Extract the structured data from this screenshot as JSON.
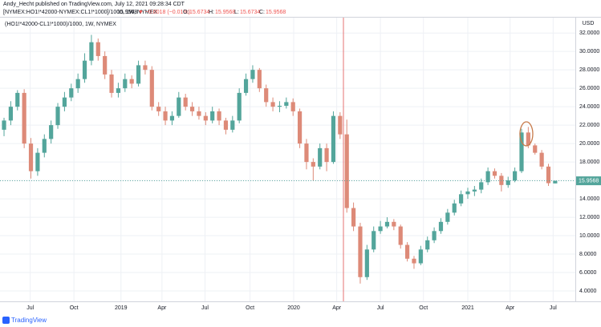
{
  "header": {
    "publisher": "Andy_Hecht published on TradingView.com, July 12, 2021 09:28:34 CDT",
    "symbol": "[NYMEX:HO1!*42000-NYMEX:CL1!*1000]/1000, 1W, NYMEX",
    "change": "▼ −0.0018 (−0.01%)",
    "ohlc_labels": [
      "O:",
      "H:",
      "L:",
      "C:"
    ]
  },
  "footer": "TradingView",
  "chart_data": {
    "type": "candlestick",
    "title": "(HO1!*42000-CL1!*1000)/1000, 1W, NYMEX",
    "currency": "USD",
    "up_color": "#53a59b",
    "down_color": "#dd8a78",
    "grid": true,
    "xlim": [
      -0.6,
      85
    ],
    "xticks": [
      {
        "value": 3.9,
        "label": "Jul"
      },
      {
        "value": 10.4,
        "label": "Oct"
      },
      {
        "value": 17.4,
        "label": "2019"
      },
      {
        "value": 23.5,
        "label": "Apr"
      },
      {
        "value": 29.9,
        "label": "Jul"
      },
      {
        "value": 36.6,
        "label": "Oct"
      },
      {
        "value": 43.1,
        "label": "2020"
      },
      {
        "value": 49.5,
        "label": "Apr"
      },
      {
        "value": 56,
        "label": "Jul"
      },
      {
        "value": 62.4,
        "label": "Oct"
      },
      {
        "value": 69,
        "label": "2021"
      },
      {
        "value": 75.3,
        "label": "Apr"
      },
      {
        "value": 81.7,
        "label": "Jul"
      }
    ],
    "ylim": [
      2.87,
      33.67
    ],
    "yticks": [
      {
        "value": 4,
        "label": "4.0000"
      },
      {
        "value": 6,
        "label": "6.0000"
      },
      {
        "value": 8,
        "label": "8.0000"
      },
      {
        "value": 10,
        "label": "10.0000"
      },
      {
        "value": 12,
        "label": "12.0000"
      },
      {
        "value": 14,
        "label": "14.0000"
      },
      {
        "value": 16,
        "label": "16.0000"
      },
      {
        "value": 18,
        "label": "18.0000"
      },
      {
        "value": 20,
        "label": "20.0000"
      },
      {
        "value": 22,
        "label": "22.0000"
      },
      {
        "value": 24,
        "label": "24.0000"
      },
      {
        "value": 26,
        "label": "26.0000"
      },
      {
        "value": 28,
        "label": "28.0000"
      },
      {
        "value": 30,
        "label": "30.0000"
      },
      {
        "value": 32,
        "label": "32.0000"
      }
    ],
    "candles": [
      [
        21.5,
        22.8,
        20.8,
        22.5
      ],
      [
        22.5,
        24.6,
        22,
        24
      ],
      [
        24,
        25.8,
        23.6,
        25.5
      ],
      [
        25.5,
        25.9,
        19.5,
        20
      ],
      [
        20,
        20.6,
        16.2,
        17
      ],
      [
        17,
        19.5,
        16.5,
        19
      ],
      [
        19,
        21,
        18.5,
        20.5
      ],
      [
        20.5,
        22.5,
        20,
        22
      ],
      [
        22,
        24.4,
        21.6,
        24
      ],
      [
        24,
        25.6,
        23.5,
        25
      ],
      [
        25,
        26.5,
        24.6,
        26
      ],
      [
        26,
        27.6,
        25.5,
        27
      ],
      [
        27,
        29.8,
        26.6,
        29
      ],
      [
        29,
        31.8,
        28.5,
        31
      ],
      [
        31,
        31.4,
        29,
        29.5
      ],
      [
        29.5,
        30,
        27,
        27.5
      ],
      [
        27.5,
        28,
        25,
        25.5
      ],
      [
        25.5,
        26.6,
        25,
        26
      ],
      [
        26,
        27.6,
        25.6,
        27
      ],
      [
        27,
        27.4,
        26,
        26.5
      ],
      [
        26.5,
        29,
        26.2,
        28.5
      ],
      [
        28.5,
        29,
        27.5,
        28
      ],
      [
        28,
        28.4,
        23.6,
        24
      ],
      [
        24,
        24.5,
        23,
        23.5
      ],
      [
        23.5,
        24,
        22,
        22.5
      ],
      [
        22.5,
        23.5,
        22,
        23
      ],
      [
        23,
        25.6,
        22.8,
        25
      ],
      [
        25,
        25.4,
        23.6,
        24
      ],
      [
        24,
        24.5,
        23,
        23.5
      ],
      [
        23.5,
        24,
        22.6,
        23
      ],
      [
        23,
        23.4,
        22,
        22.5
      ],
      [
        22.5,
        24,
        22.2,
        23.5
      ],
      [
        23.5,
        23.8,
        22,
        22.5
      ],
      [
        22.5,
        22.8,
        21,
        21.5
      ],
      [
        21.5,
        23,
        21.2,
        22.5
      ],
      [
        22.5,
        26,
        22.2,
        25.5
      ],
      [
        25.5,
        27.6,
        25.2,
        27
      ],
      [
        27,
        28.5,
        26.6,
        28
      ],
      [
        28,
        28.2,
        25.6,
        26
      ],
      [
        26,
        26.4,
        24,
        24.5
      ],
      [
        24.5,
        25,
        23.5,
        24
      ],
      [
        24,
        24.6,
        23.4,
        24.1
      ],
      [
        24.1,
        25,
        23.8,
        24.5
      ],
      [
        24.5,
        24.9,
        23,
        23.5
      ],
      [
        23.5,
        23.8,
        19.5,
        20
      ],
      [
        20,
        20.5,
        17.2,
        18
      ],
      [
        18,
        18.4,
        16,
        17.5
      ],
      [
        17.5,
        20,
        17.2,
        19.5
      ],
      [
        19.5,
        20,
        17,
        18
      ],
      [
        18,
        23.5,
        17.8,
        23
      ],
      [
        23,
        23.4,
        20.5,
        21
      ],
      [
        21,
        22.6,
        12.5,
        13
      ],
      [
        13,
        13.6,
        10.5,
        11
      ],
      [
        11,
        11.4,
        4.8,
        5.5
      ],
      [
        5.5,
        9,
        5.2,
        8.5
      ],
      [
        8.5,
        11,
        8.2,
        10.5
      ],
      [
        10.5,
        11.6,
        10.2,
        11
      ],
      [
        11,
        12,
        10.8,
        11.5
      ],
      [
        11.5,
        11.8,
        10.6,
        11
      ],
      [
        11,
        11.2,
        8.6,
        9
      ],
      [
        9,
        9.3,
        7.2,
        7.5
      ],
      [
        7.5,
        7.8,
        6.4,
        7
      ],
      [
        7,
        8.9,
        6.8,
        8.5
      ],
      [
        8.5,
        9.9,
        8.2,
        9.5
      ],
      [
        9.5,
        10.9,
        9.2,
        10.5
      ],
      [
        10.5,
        11.9,
        10.2,
        11.5
      ],
      [
        11.5,
        12.9,
        11.2,
        12.5
      ],
      [
        12.5,
        13.9,
        12.2,
        13.5
      ],
      [
        13.5,
        14.9,
        13.2,
        14.5
      ],
      [
        14.5,
        15.2,
        14,
        14.8
      ],
      [
        14.8,
        15.4,
        14.3,
        15
      ],
      [
        15,
        16.2,
        14.6,
        15.8
      ],
      [
        15.8,
        17.4,
        15.5,
        17
      ],
      [
        17,
        17.3,
        16.2,
        16.5
      ],
      [
        16.5,
        16.8,
        14.8,
        15.5
      ],
      [
        15.5,
        16.4,
        15.2,
        16
      ],
      [
        16,
        17.4,
        15.8,
        17
      ],
      [
        17,
        21.6,
        16.8,
        21.2
      ],
      [
        21.2,
        21.8,
        19.5,
        19.8
      ],
      [
        19.8,
        20,
        18.8,
        19
      ],
      [
        19,
        19.3,
        17.2,
        17.5
      ],
      [
        17.5,
        17.8,
        15.4,
        15.7
      ],
      [
        15.6734,
        15.9568,
        15.6734,
        15.9568
      ]
    ]
  }
}
